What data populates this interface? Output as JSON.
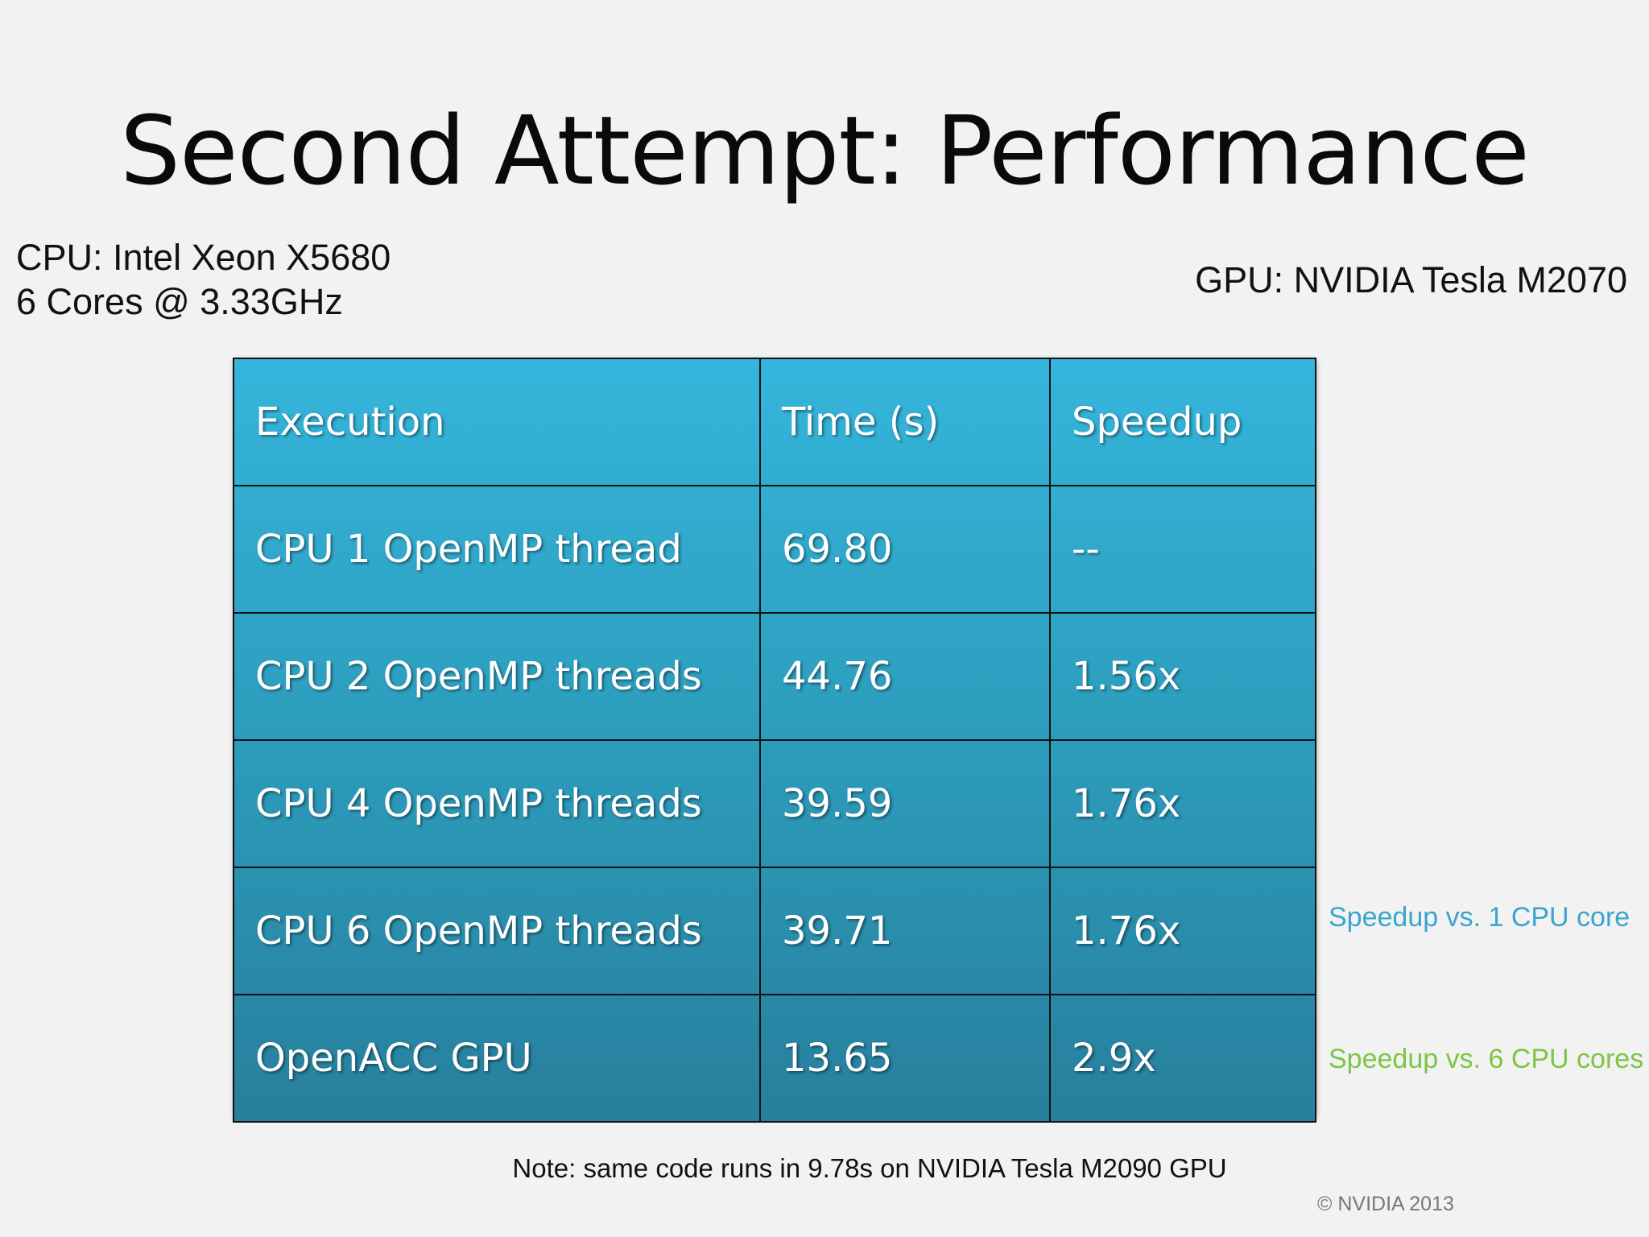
{
  "slide": {
    "title": "Second Attempt: Performance",
    "cpu_line1": "CPU: Intel Xeon X5680",
    "cpu_line2": "6 Cores @ 3.33GHz",
    "gpu_info": "GPU: NVIDIA Tesla M2070",
    "note_speedup_1cpu": "Speedup vs. 1 CPU core",
    "note_speedup_6cpu": "Speedup vs. 6 CPU cores",
    "footnote": "Note: same code runs in 9.78s on NVIDIA Tesla M2090 GPU",
    "copyright": "© NVIDIA 2013"
  },
  "table": {
    "headers": [
      "Execution",
      "Time (s)",
      "Speedup"
    ],
    "rows": [
      [
        "CPU 1 OpenMP thread",
        "69.80",
        "--"
      ],
      [
        "CPU 2 OpenMP threads",
        "44.76",
        "1.56x"
      ],
      [
        "CPU 4 OpenMP threads",
        "39.59",
        "1.76x"
      ],
      [
        "CPU 6 OpenMP threads",
        "39.71",
        "1.76x"
      ],
      [
        "OpenACC GPU",
        "13.65",
        "2.9x"
      ]
    ]
  },
  "colors": {
    "table_top": "#35b5dc",
    "table_bottom": "#277f9c",
    "note_blue": "#3aa5cf",
    "note_green": "#7dc544"
  }
}
